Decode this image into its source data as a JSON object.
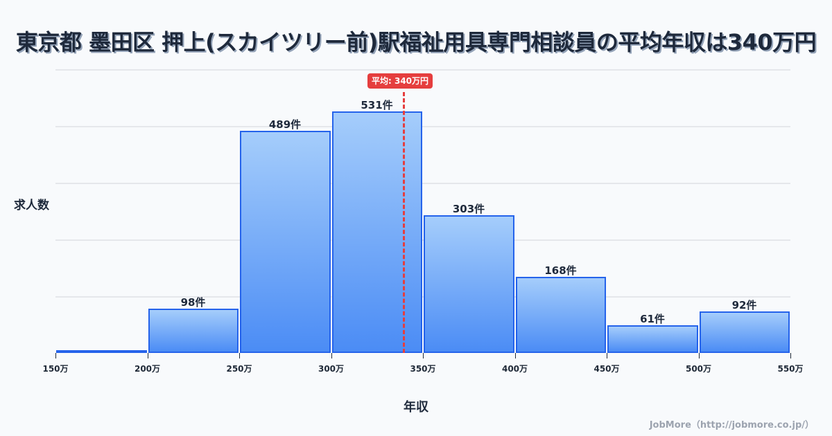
{
  "title": "東京都 墨田区 押上(スカイツリー前)駅福祉用具専門相談員の平均年収は340万円",
  "y_axis_label": "求人数",
  "x_axis_label": "年収",
  "mean_badge": "平均: 340万円",
  "footer": "JobMore（http://jobmore.co.jp/）",
  "colors": {
    "bar_border": "#2563eb",
    "bar_top": "#a5cdfb",
    "bar_bottom": "#4b8cf5",
    "mean_line": "#e53e3e",
    "background": "#f8fafc"
  },
  "bars": [
    {
      "range": "150万-200万",
      "count": 0,
      "label": ""
    },
    {
      "range": "200万-250万",
      "count": 98,
      "label": "98件"
    },
    {
      "range": "250万-300万",
      "count": 489,
      "label": "489件"
    },
    {
      "range": "300万-350万",
      "count": 531,
      "label": "531件"
    },
    {
      "range": "350万-400万",
      "count": 303,
      "label": "303件"
    },
    {
      "range": "400万-450万",
      "count": 168,
      "label": "168件"
    },
    {
      "range": "450万-500万",
      "count": 61,
      "label": "61件"
    },
    {
      "range": "500万-550万",
      "count": 92,
      "label": "92件"
    }
  ],
  "ticks": [
    "150万",
    "200万",
    "250万",
    "300万",
    "350万",
    "400万",
    "450万",
    "500万",
    "550万"
  ],
  "chart_data": {
    "type": "bar",
    "title": "東京都 墨田区 押上(スカイツリー前)駅福祉用具専門相談員の平均年収は340万円",
    "xlabel": "年収",
    "ylabel": "求人数",
    "categories": [
      "150-200万",
      "200-250万",
      "250-300万",
      "300-350万",
      "350-400万",
      "400-450万",
      "450-500万",
      "500-550万"
    ],
    "bin_edges": [
      150,
      200,
      250,
      300,
      350,
      400,
      450,
      500,
      550
    ],
    "values": [
      0,
      98,
      489,
      531,
      303,
      168,
      61,
      92
    ],
    "data_labels": [
      "",
      "98件",
      "489件",
      "531件",
      "303件",
      "168件",
      "61件",
      "92件"
    ],
    "annotations": [
      {
        "type": "vline",
        "x": 340,
        "label": "平均: 340万円",
        "color": "#e53e3e",
        "style": "dashed"
      }
    ],
    "ylim": [
      0,
      625
    ],
    "grid": true,
    "legend": "none"
  }
}
